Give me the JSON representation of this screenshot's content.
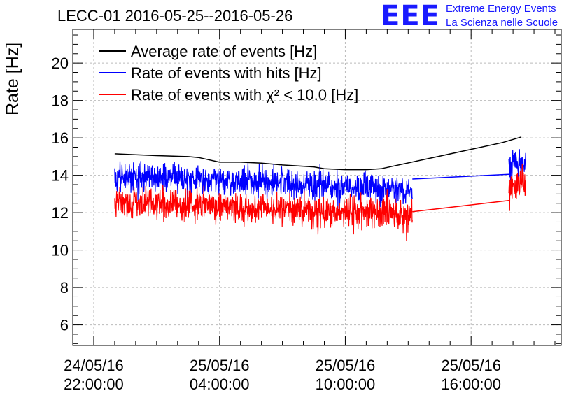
{
  "header": {
    "title": "LECC-01 2016-05-25--2016-05-26",
    "logo_text": "EEE",
    "logo_line1": "Extreme Energy Events",
    "logo_line2": "La Scienza nelle Scuole"
  },
  "colors": {
    "black": "#000000",
    "blue": "#0000ff",
    "red": "#ff0000",
    "logo": "#1a1aff"
  },
  "chart_data": {
    "type": "line",
    "title": "LECC-01 2016-05-25--2016-05-26",
    "xlabel": "",
    "ylabel": "Rate [Hz]",
    "ylim": [
      4.9,
      21.8
    ],
    "xlim_hours_from_start": [
      -1,
      22.3
    ],
    "x_unit": "hours after 24/05/16 22:00:00",
    "yticks": [
      6,
      8,
      10,
      12,
      14,
      16,
      18,
      20
    ],
    "xticks": [
      {
        "date": "24/05/16",
        "time": "22:00:00",
        "h": 0
      },
      {
        "date": "25/05/16",
        "time": "04:00:00",
        "h": 6
      },
      {
        "date": "25/05/16",
        "time": "10:00:00",
        "h": 12
      },
      {
        "date": "25/05/16",
        "time": "16:00:00",
        "h": 18
      }
    ],
    "legend_position": "top-left",
    "series": [
      {
        "name": "Average rate of events [Hz]",
        "color": "#000000",
        "style": "smooth",
        "points": [
          [
            1.0,
            15.15
          ],
          [
            2.0,
            15.1
          ],
          [
            3.0,
            15.05
          ],
          [
            4.5,
            15.0
          ],
          [
            5.0,
            14.95
          ],
          [
            6.0,
            14.7
          ],
          [
            7.0,
            14.7
          ],
          [
            8.0,
            14.65
          ],
          [
            9.0,
            14.55
          ],
          [
            10.5,
            14.45
          ],
          [
            11.0,
            14.35
          ],
          [
            12.0,
            14.3
          ],
          [
            13.0,
            14.3
          ],
          [
            13.7,
            14.35
          ],
          [
            16.0,
            14.9
          ],
          [
            19.5,
            15.75
          ],
          [
            20.4,
            16.05
          ]
        ]
      },
      {
        "name": "Rate of events with hits [Hz]",
        "color": "#0000ff",
        "style": "noisy",
        "segments": [
          {
            "x_start": 1.0,
            "x_end": 15.2,
            "mean_start": 13.95,
            "mean_end": 13.25,
            "noise": 0.75
          },
          {
            "link": [
              [
                15.2,
                13.8
              ],
              [
                19.8,
                14.05
              ]
            ]
          },
          {
            "x_start": 19.8,
            "x_end": 20.6,
            "mean_start": 14.6,
            "mean_end": 14.7,
            "noise": 0.9
          }
        ]
      },
      {
        "name": "Rate of events with χ² < 10.0 [Hz]",
        "color": "#ff0000",
        "style": "noisy",
        "segments": [
          {
            "x_start": 1.0,
            "x_end": 15.2,
            "mean_start": 12.55,
            "mean_end": 11.9,
            "noise": 0.8
          },
          {
            "link": [
              [
                15.2,
                12.05
              ],
              [
                19.8,
                12.65
              ]
            ]
          },
          {
            "x_start": 19.8,
            "x_end": 20.6,
            "mean_start": 13.3,
            "mean_end": 13.5,
            "noise": 0.9
          }
        ]
      }
    ]
  }
}
